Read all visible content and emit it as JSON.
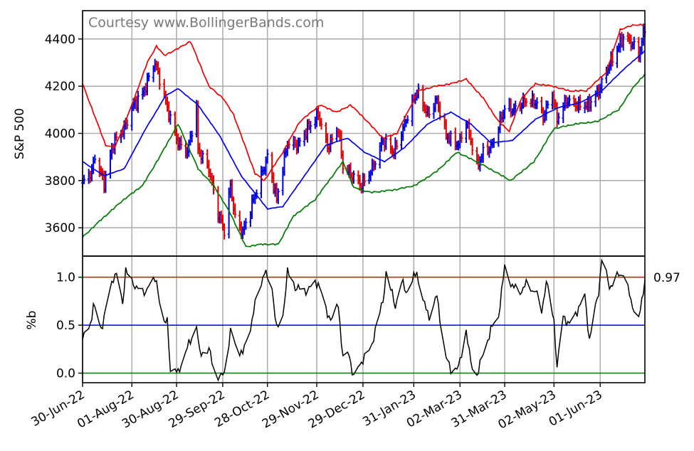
{
  "watermark": "Courtesy www.BollingerBands.com",
  "current_pctb_label": "0.97",
  "colors": {
    "upper_band": "#ee0000",
    "middle_band": "#0000ee",
    "lower_band": "#007a00",
    "bar_up": "#0000dd",
    "bar_down": "#dd0000",
    "pctb_line": "#000000",
    "pctb_upper_ref": "#ee0000",
    "pctb_mid_ref": "#0000ee",
    "pctb_lower_ref": "#007a00"
  },
  "chart_data": [
    {
      "type": "line",
      "subtype": "ohlc_bars_with_bollinger_bands",
      "ylabel": "S&P 500",
      "ylim": [
        3480,
        4520
      ],
      "yticks": [
        3600,
        3800,
        4000,
        4200,
        4400
      ],
      "grid": true,
      "x": {
        "range": [
          "2022-06-30",
          "2023-06-30"
        ],
        "tick_dates": [
          "2022-06-30",
          "2022-08-01",
          "2022-08-30",
          "2022-09-29",
          "2022-10-28",
          "2022-11-29",
          "2022-12-29",
          "2023-01-31",
          "2023-03-02",
          "2023-03-31",
          "2023-05-02",
          "2023-06-01"
        ],
        "tick_labels": [
          "30-Jun-22",
          "01-Aug-22",
          "30-Aug-22",
          "29-Sep-22",
          "28-Oct-22",
          "29-Nov-22",
          "29-Dec-22",
          "31-Jan-23",
          "02-Mar-23",
          "31-Mar-23",
          "02-May-23",
          "01-Jun-23"
        ]
      },
      "close_keypoints": [
        [
          "2022-06-30",
          3790
        ],
        [
          "2022-07-06",
          3840
        ],
        [
          "2022-07-08",
          3900
        ],
        [
          "2022-07-14",
          3790
        ],
        [
          "2022-07-20",
          3960
        ],
        [
          "2022-07-27",
          4020
        ],
        [
          "2022-08-02",
          4120
        ],
        [
          "2022-08-08",
          4170
        ],
        [
          "2022-08-16",
          4300
        ],
        [
          "2022-08-19",
          4230
        ],
        [
          "2022-08-26",
          4060
        ],
        [
          "2022-08-31",
          3960
        ],
        [
          "2022-09-06",
          3920
        ],
        [
          "2022-09-12",
          4110
        ],
        [
          "2022-09-13",
          3930
        ],
        [
          "2022-09-20",
          3850
        ],
        [
          "2022-09-26",
          3660
        ],
        [
          "2022-09-30",
          3590
        ],
        [
          "2022-10-04",
          3780
        ],
        [
          "2022-10-07",
          3640
        ],
        [
          "2022-10-12",
          3580
        ],
        [
          "2022-10-17",
          3680
        ],
        [
          "2022-10-21",
          3760
        ],
        [
          "2022-10-28",
          3900
        ],
        [
          "2022-11-03",
          3720
        ],
        [
          "2022-11-10",
          3960
        ],
        [
          "2022-11-17",
          3950
        ],
        [
          "2022-11-23",
          4020
        ],
        [
          "2022-11-30",
          4080
        ],
        [
          "2022-12-06",
          3940
        ],
        [
          "2022-12-13",
          4020
        ],
        [
          "2022-12-16",
          3860
        ],
        [
          "2022-12-22",
          3820
        ],
        [
          "2022-12-28",
          3780
        ],
        [
          "2023-01-04",
          3850
        ],
        [
          "2023-01-11",
          3970
        ],
        [
          "2023-01-18",
          3920
        ],
        [
          "2023-01-24",
          4020
        ],
        [
          "2023-02-02",
          4180
        ],
        [
          "2023-02-09",
          4080
        ],
        [
          "2023-02-15",
          4140
        ],
        [
          "2023-02-21",
          3990
        ],
        [
          "2023-03-01",
          3950
        ],
        [
          "2023-03-06",
          4050
        ],
        [
          "2023-03-13",
          3860
        ],
        [
          "2023-03-17",
          3920
        ],
        [
          "2023-03-23",
          3950
        ],
        [
          "2023-03-31",
          4110
        ],
        [
          "2023-04-06",
          4100
        ],
        [
          "2023-04-14",
          4140
        ],
        [
          "2023-04-21",
          4130
        ],
        [
          "2023-04-25",
          4070
        ],
        [
          "2023-05-01",
          4170
        ],
        [
          "2023-05-04",
          4060
        ],
        [
          "2023-05-10",
          4140
        ],
        [
          "2023-05-17",
          4120
        ],
        [
          "2023-05-24",
          4120
        ],
        [
          "2023-05-31",
          4180
        ],
        [
          "2023-06-06",
          4280
        ],
        [
          "2023-06-13",
          4370
        ],
        [
          "2023-06-16",
          4410
        ],
        [
          "2023-06-22",
          4380
        ],
        [
          "2023-06-26",
          4330
        ],
        [
          "2023-06-30",
          4450
        ]
      ],
      "upper_band_keypoints": [
        [
          "2022-06-30",
          4210
        ],
        [
          "2022-07-15",
          3950
        ],
        [
          "2022-07-21",
          3940
        ],
        [
          "2022-08-01",
          4120
        ],
        [
          "2022-08-11",
          4300
        ],
        [
          "2022-08-17",
          4370
        ],
        [
          "2022-08-22",
          4330
        ],
        [
          "2022-08-31",
          4360
        ],
        [
          "2022-09-08",
          4390
        ],
        [
          "2022-09-20",
          4200
        ],
        [
          "2022-09-29",
          4150
        ],
        [
          "2022-10-06",
          4080
        ],
        [
          "2022-10-20",
          3830
        ],
        [
          "2022-10-26",
          3800
        ],
        [
          "2022-11-07",
          3920
        ],
        [
          "2022-11-18",
          4050
        ],
        [
          "2022-12-01",
          4120
        ],
        [
          "2022-12-12",
          4090
        ],
        [
          "2022-12-21",
          4120
        ],
        [
          "2022-12-29",
          4070
        ],
        [
          "2023-01-11",
          3980
        ],
        [
          "2023-01-20",
          4000
        ],
        [
          "2023-02-03",
          4180
        ],
        [
          "2023-02-14",
          4200
        ],
        [
          "2023-02-24",
          4210
        ],
        [
          "2023-03-06",
          4230
        ],
        [
          "2023-03-17",
          4150
        ],
        [
          "2023-03-27",
          4050
        ],
        [
          "2023-04-03",
          4010
        ],
        [
          "2023-04-11",
          4150
        ],
        [
          "2023-04-20",
          4210
        ],
        [
          "2023-05-01",
          4200
        ],
        [
          "2023-05-12",
          4180
        ],
        [
          "2023-05-23",
          4180
        ],
        [
          "2023-06-05",
          4260
        ],
        [
          "2023-06-14",
          4440
        ],
        [
          "2023-06-23",
          4460
        ],
        [
          "2023-06-30",
          4460
        ]
      ],
      "middle_band_keypoints": [
        [
          "2022-06-30",
          3880
        ],
        [
          "2022-07-14",
          3820
        ],
        [
          "2022-07-27",
          3850
        ],
        [
          "2022-08-10",
          4020
        ],
        [
          "2022-08-23",
          4160
        ],
        [
          "2022-08-31",
          4190
        ],
        [
          "2022-09-13",
          4120
        ],
        [
          "2022-09-27",
          3990
        ],
        [
          "2022-10-11",
          3820
        ],
        [
          "2022-10-28",
          3680
        ],
        [
          "2022-11-07",
          3690
        ],
        [
          "2022-11-21",
          3820
        ],
        [
          "2022-12-05",
          3950
        ],
        [
          "2022-12-19",
          3980
        ],
        [
          "2022-12-30",
          3920
        ],
        [
          "2023-01-12",
          3880
        ],
        [
          "2023-01-25",
          3940
        ],
        [
          "2023-02-09",
          4040
        ],
        [
          "2023-02-24",
          4090
        ],
        [
          "2023-03-09",
          4040
        ],
        [
          "2023-03-22",
          3960
        ],
        [
          "2023-04-05",
          3970
        ],
        [
          "2023-04-20",
          4060
        ],
        [
          "2023-05-05",
          4110
        ],
        [
          "2023-05-19",
          4130
        ],
        [
          "2023-06-02",
          4180
        ],
        [
          "2023-06-16",
          4270
        ],
        [
          "2023-06-30",
          4350
        ]
      ],
      "lower_band_keypoints": [
        [
          "2022-06-30",
          3560
        ],
        [
          "2022-07-13",
          3640
        ],
        [
          "2022-07-25",
          3710
        ],
        [
          "2022-08-08",
          3780
        ],
        [
          "2022-08-19",
          3900
        ],
        [
          "2022-08-31",
          4040
        ],
        [
          "2022-09-13",
          3850
        ],
        [
          "2022-09-23",
          3780
        ],
        [
          "2022-10-04",
          3660
        ],
        [
          "2022-10-14",
          3520
        ],
        [
          "2022-10-24",
          3530
        ],
        [
          "2022-11-04",
          3530
        ],
        [
          "2022-11-14",
          3650
        ],
        [
          "2022-11-28",
          3720
        ],
        [
          "2022-12-07",
          3800
        ],
        [
          "2022-12-16",
          3880
        ],
        [
          "2022-12-23",
          3770
        ],
        [
          "2023-01-03",
          3750
        ],
        [
          "2023-01-18",
          3760
        ],
        [
          "2023-02-01",
          3780
        ],
        [
          "2023-02-15",
          3840
        ],
        [
          "2023-02-28",
          3920
        ],
        [
          "2023-03-13",
          3880
        ],
        [
          "2023-03-24",
          3840
        ],
        [
          "2023-04-04",
          3800
        ],
        [
          "2023-04-19",
          3880
        ],
        [
          "2023-05-02",
          4020
        ],
        [
          "2023-05-16",
          4040
        ],
        [
          "2023-05-30",
          4050
        ],
        [
          "2023-06-13",
          4100
        ],
        [
          "2023-06-23",
          4200
        ],
        [
          "2023-06-30",
          4250
        ]
      ]
    },
    {
      "type": "line",
      "ylabel": "%b",
      "ylim": [
        -0.1,
        1.22
      ],
      "yticks": [
        0.0,
        0.5,
        1.0
      ],
      "reference_lines": [
        1.0,
        0.5,
        0.0
      ],
      "grid": true,
      "latest_value": 0.97,
      "pctb_keypoints": [
        [
          "2022-06-30",
          0.35
        ],
        [
          "2022-07-05",
          0.5
        ],
        [
          "2022-07-07",
          0.72
        ],
        [
          "2022-07-12",
          0.45
        ],
        [
          "2022-07-15",
          0.67
        ],
        [
          "2022-07-20",
          1.0
        ],
        [
          "2022-07-22",
          1.05
        ],
        [
          "2022-07-26",
          0.7
        ],
        [
          "2022-07-28",
          1.1
        ],
        [
          "2022-08-02",
          0.9
        ],
        [
          "2022-08-05",
          0.92
        ],
        [
          "2022-08-09",
          0.8
        ],
        [
          "2022-08-12",
          0.95
        ],
        [
          "2022-08-17",
          0.95
        ],
        [
          "2022-08-22",
          0.5
        ],
        [
          "2022-08-24",
          0.55
        ],
        [
          "2022-08-26",
          0.05
        ],
        [
          "2022-08-31",
          0.0
        ],
        [
          "2022-09-02",
          0.1
        ],
        [
          "2022-09-07",
          0.3
        ],
        [
          "2022-09-12",
          0.5
        ],
        [
          "2022-09-14",
          0.2
        ],
        [
          "2022-09-20",
          0.25
        ],
        [
          "2022-09-23",
          0.05
        ],
        [
          "2022-09-27",
          -0.05
        ],
        [
          "2022-09-30",
          0.0
        ],
        [
          "2022-10-04",
          0.45
        ],
        [
          "2022-10-07",
          0.3
        ],
        [
          "2022-10-12",
          0.2
        ],
        [
          "2022-10-18",
          0.55
        ],
        [
          "2022-10-21",
          0.8
        ],
        [
          "2022-10-26",
          1.05
        ],
        [
          "2022-10-31",
          0.9
        ],
        [
          "2022-11-03",
          0.45
        ],
        [
          "2022-11-07",
          0.6
        ],
        [
          "2022-11-10",
          1.05
        ],
        [
          "2022-11-15",
          0.9
        ],
        [
          "2022-11-21",
          0.85
        ],
        [
          "2022-11-30",
          0.95
        ],
        [
          "2022-12-05",
          0.65
        ],
        [
          "2022-12-09",
          0.55
        ],
        [
          "2022-12-13",
          0.72
        ],
        [
          "2022-12-16",
          0.15
        ],
        [
          "2022-12-20",
          0.2
        ],
        [
          "2022-12-23",
          -0.05
        ],
        [
          "2022-12-29",
          0.15
        ],
        [
          "2023-01-03",
          0.25
        ],
        [
          "2023-01-06",
          0.45
        ],
        [
          "2023-01-11",
          0.75
        ],
        [
          "2023-01-13",
          1.05
        ],
        [
          "2023-01-19",
          0.7
        ],
        [
          "2023-01-23",
          0.95
        ],
        [
          "2023-01-26",
          0.85
        ],
        [
          "2023-02-02",
          1.05
        ],
        [
          "2023-02-07",
          0.7
        ],
        [
          "2023-02-10",
          0.6
        ],
        [
          "2023-02-15",
          0.8
        ],
        [
          "2023-02-21",
          0.15
        ],
        [
          "2023-02-24",
          0.05
        ],
        [
          "2023-03-01",
          0.05
        ],
        [
          "2023-03-06",
          0.45
        ],
        [
          "2023-03-09",
          0.1
        ],
        [
          "2023-03-13",
          -0.02
        ],
        [
          "2023-03-17",
          0.2
        ],
        [
          "2023-03-22",
          0.45
        ],
        [
          "2023-03-27",
          0.6
        ],
        [
          "2023-03-31",
          1.1
        ],
        [
          "2023-04-05",
          0.9
        ],
        [
          "2023-04-10",
          0.85
        ],
        [
          "2023-04-14",
          0.92
        ],
        [
          "2023-04-20",
          0.85
        ],
        [
          "2023-04-24",
          0.65
        ],
        [
          "2023-04-27",
          0.95
        ],
        [
          "2023-05-02",
          0.55
        ],
        [
          "2023-05-04",
          0.05
        ],
        [
          "2023-05-08",
          0.6
        ],
        [
          "2023-05-12",
          0.5
        ],
        [
          "2023-05-17",
          0.65
        ],
        [
          "2023-05-22",
          0.8
        ],
        [
          "2023-05-25",
          0.35
        ],
        [
          "2023-05-31",
          0.85
        ],
        [
          "2023-06-02",
          1.2
        ],
        [
          "2023-06-07",
          0.9
        ],
        [
          "2023-06-12",
          1.0
        ],
        [
          "2023-06-16",
          1.05
        ],
        [
          "2023-06-21",
          0.75
        ],
        [
          "2023-06-26",
          0.55
        ],
        [
          "2023-06-28",
          0.75
        ],
        [
          "2023-06-30",
          0.97
        ]
      ]
    }
  ]
}
